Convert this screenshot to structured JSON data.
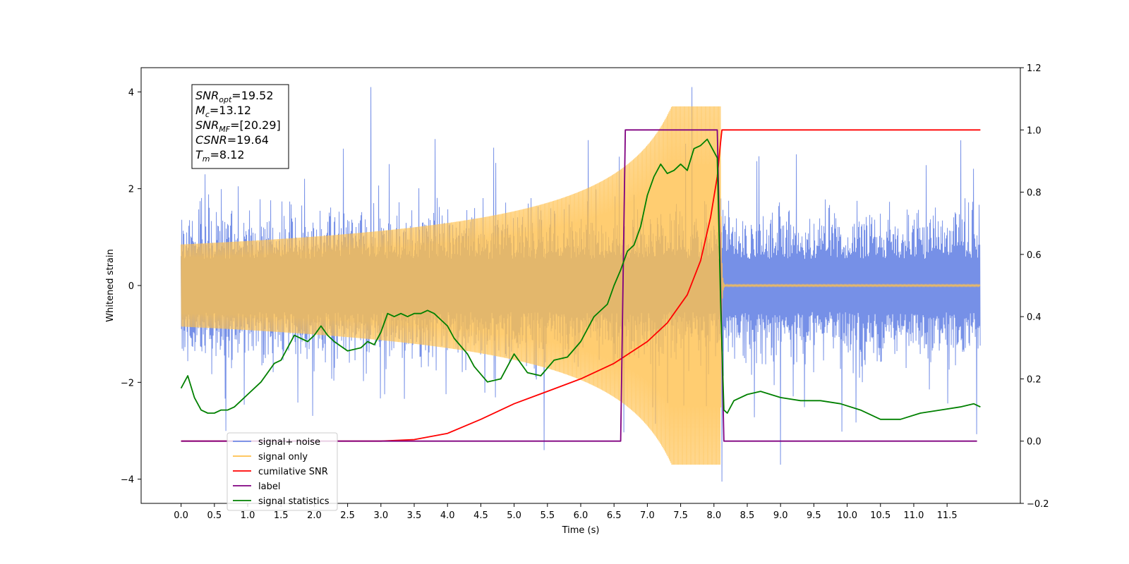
{
  "chart_data": {
    "type": "line",
    "title": "",
    "xlabel": "Time (s)",
    "ylabel": "Whitened strain",
    "y2label": "",
    "xlim": [
      -0.6,
      12.6
    ],
    "ylim": [
      -4.5,
      4.5
    ],
    "y2lim": [
      -0.2,
      1.2
    ],
    "x_ticks": [
      0.0,
      0.5,
      1.0,
      1.5,
      2.0,
      2.5,
      3.0,
      3.5,
      4.0,
      4.5,
      5.0,
      5.5,
      6.0,
      6.5,
      7.0,
      7.5,
      8.0,
      8.5,
      9.0,
      9.5,
      10.0,
      10.5,
      11.0,
      11.5
    ],
    "x_tick_labels": [
      "0.0",
      "0.5",
      "1.0",
      "1.5",
      "2.0",
      "2.5",
      "3.0",
      "3.5",
      "4.0",
      "4.5",
      "5.0",
      "5.5",
      "6.0",
      "6.5",
      "7.0",
      "7.5",
      "8.0",
      "8.5",
      "9.0",
      "9.5",
      "10.0",
      "10.5",
      "11.0",
      "11.5"
    ],
    "y_ticks": [
      -4,
      -2,
      0,
      2,
      4
    ],
    "y_tick_labels": [
      "−4",
      "−2",
      "0",
      "2",
      "4"
    ],
    "y2_ticks": [
      -0.2,
      0.0,
      0.2,
      0.4,
      0.6,
      0.8,
      1.0,
      1.2
    ],
    "y2_tick_labels": [
      "−0.2",
      "0.0",
      "0.2",
      "0.4",
      "0.6",
      "0.8",
      "1.0",
      "1.2"
    ],
    "grid": false,
    "legend_position": "bottom-left",
    "info_box": {
      "lines": [
        {
          "symbol": "SNR",
          "sub": "opt",
          "value": "=19.52"
        },
        {
          "symbol": "M",
          "sub": "c",
          "value": "=13.12"
        },
        {
          "symbol": "SNR",
          "sub": "MF",
          "value": "=[20.29]"
        },
        {
          "symbol": "CSNR",
          "sub": "",
          "value": "=19.64"
        },
        {
          "symbol": "T",
          "sub": "m",
          "value": "=8.12"
        }
      ]
    },
    "series": [
      {
        "name": "signal+ noise",
        "color": "#6f8ae6",
        "axis": "left",
        "x_range": [
          0.0,
          12.0
        ],
        "envelope": [
          -2.3,
          2.5
        ],
        "spikes": [
          [
            2.85,
            4.1
          ],
          [
            7.67,
            4.1
          ],
          [
            8.12,
            -4.05
          ],
          [
            9.0,
            -3.7
          ],
          [
            5.45,
            -3.4
          ]
        ]
      },
      {
        "name": "signal only",
        "color": "#ffc04d",
        "axis": "left",
        "peak_time": 8.1,
        "peak_value": 3.7
      },
      {
        "name": "cumilative SNR",
        "color": "#ff0000",
        "axis": "right",
        "x": [
          0.0,
          1.0,
          2.0,
          3.0,
          3.5,
          4.0,
          4.5,
          5.0,
          5.5,
          6.0,
          6.5,
          7.0,
          7.3,
          7.6,
          7.8,
          7.95,
          8.05,
          8.1,
          8.12,
          12.0
        ],
        "values": [
          0.0,
          0.0,
          0.0,
          0.0,
          0.005,
          0.025,
          0.07,
          0.12,
          0.16,
          0.2,
          0.25,
          0.32,
          0.38,
          0.47,
          0.58,
          0.72,
          0.85,
          0.96,
          1.0,
          1.0
        ]
      },
      {
        "name": "label",
        "color": "#800080",
        "axis": "right",
        "x": [
          0.0,
          6.6,
          6.67,
          8.05,
          8.15,
          11.95
        ],
        "values": [
          0.0,
          0.0,
          1.0,
          1.0,
          0.0,
          0.0
        ]
      },
      {
        "name": "signal statistics",
        "color": "#008000",
        "axis": "right",
        "x": [
          0.0,
          0.1,
          0.2,
          0.3,
          0.4,
          0.5,
          0.6,
          0.7,
          0.8,
          1.0,
          1.2,
          1.4,
          1.5,
          1.7,
          1.9,
          2.0,
          2.1,
          2.2,
          2.3,
          2.5,
          2.7,
          2.8,
          2.9,
          3.0,
          3.1,
          3.2,
          3.3,
          3.4,
          3.5,
          3.6,
          3.7,
          3.8,
          3.9,
          4.0,
          4.1,
          4.3,
          4.4,
          4.6,
          4.8,
          5.0,
          5.2,
          5.4,
          5.6,
          5.8,
          6.0,
          6.2,
          6.4,
          6.5,
          6.6,
          6.7,
          6.8,
          6.9,
          7.0,
          7.1,
          7.2,
          7.3,
          7.4,
          7.5,
          7.6,
          7.7,
          7.8,
          7.9,
          8.0,
          8.05,
          8.1,
          8.15,
          8.2,
          8.3,
          8.5,
          8.7,
          9.0,
          9.3,
          9.6,
          9.9,
          10.2,
          10.5,
          10.8,
          11.1,
          11.4,
          11.7,
          11.9,
          12.0
        ],
        "values": [
          0.17,
          0.21,
          0.14,
          0.1,
          0.09,
          0.09,
          0.1,
          0.1,
          0.11,
          0.15,
          0.19,
          0.25,
          0.26,
          0.34,
          0.32,
          0.34,
          0.37,
          0.34,
          0.32,
          0.29,
          0.3,
          0.32,
          0.31,
          0.35,
          0.41,
          0.4,
          0.41,
          0.4,
          0.41,
          0.41,
          0.42,
          0.41,
          0.39,
          0.37,
          0.33,
          0.28,
          0.24,
          0.19,
          0.2,
          0.28,
          0.22,
          0.21,
          0.26,
          0.27,
          0.32,
          0.4,
          0.44,
          0.5,
          0.55,
          0.61,
          0.63,
          0.69,
          0.79,
          0.85,
          0.89,
          0.86,
          0.87,
          0.89,
          0.87,
          0.94,
          0.95,
          0.97,
          0.93,
          0.91,
          0.45,
          0.1,
          0.09,
          0.13,
          0.15,
          0.16,
          0.14,
          0.13,
          0.13,
          0.12,
          0.1,
          0.07,
          0.07,
          0.09,
          0.1,
          0.11,
          0.12,
          0.11
        ]
      }
    ]
  }
}
